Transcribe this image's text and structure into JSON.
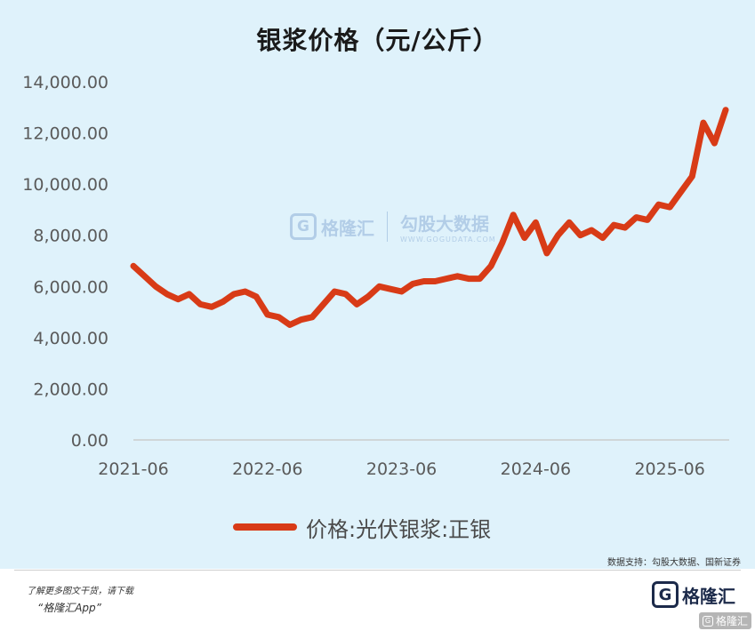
{
  "chart_data": {
    "type": "line",
    "title": "银浆价格（元/公斤）",
    "ylim": [
      0,
      14000
    ],
    "yticks": [
      "0.00",
      "2,000.00",
      "4,000.00",
      "6,000.00",
      "8,000.00",
      "10,000.00",
      "12,000.00",
      "14,000.00"
    ],
    "xticks": [
      "2021-06",
      "2022-06",
      "2023-06",
      "2024-06",
      "2025-06"
    ],
    "grid": false,
    "legend_position": "bottom",
    "series": [
      {
        "name": "价格:光伏银浆:正银",
        "color": "#d83b17",
        "x": [
          "2021-06",
          "2021-07",
          "2021-08",
          "2021-09",
          "2021-10",
          "2021-11",
          "2021-12",
          "2022-01",
          "2022-02",
          "2022-03",
          "2022-04",
          "2022-05",
          "2022-06",
          "2022-07",
          "2022-08",
          "2022-09",
          "2022-10",
          "2022-11",
          "2022-12",
          "2023-01",
          "2023-02",
          "2023-03",
          "2023-04",
          "2023-05",
          "2023-06",
          "2023-07",
          "2023-08",
          "2023-09",
          "2023-10",
          "2023-11",
          "2023-12",
          "2024-01",
          "2024-02",
          "2024-03",
          "2024-04",
          "2024-05",
          "2024-06",
          "2024-07",
          "2024-08",
          "2024-09",
          "2024-10",
          "2024-11",
          "2024-12",
          "2025-01",
          "2025-02",
          "2025-03",
          "2025-04",
          "2025-05",
          "2025-06",
          "2025-07",
          "2025-08",
          "2025-09",
          "2025-10",
          "2025-11"
        ],
        "values": [
          6800,
          6400,
          6000,
          5700,
          5500,
          5700,
          5300,
          5200,
          5400,
          5700,
          5800,
          5600,
          4900,
          4800,
          4500,
          4700,
          4800,
          5300,
          5800,
          5700,
          5300,
          5600,
          6000,
          5900,
          5800,
          6100,
          6200,
          6200,
          6300,
          6400,
          6300,
          6300,
          6800,
          7700,
          8800,
          7900,
          8500,
          7300,
          8000,
          8500,
          8000,
          8200,
          7900,
          8400,
          8300,
          8700,
          8600,
          9200,
          9100,
          9700,
          10300,
          12400,
          11600,
          12900
        ]
      }
    ]
  },
  "legend_label": "价格:光伏银浆:正银",
  "source_note": "数据支持：勾股大数据、国新证券",
  "promo_line1": "了解更多图文干货，请下载",
  "promo_line2": "“格隆汇App”",
  "watermark": {
    "logo_letter": "G",
    "brand_name": "格隆汇",
    "brand_name2": "勾股大数据",
    "url": "WWW.GOGUDATA.COM"
  },
  "footer_logo": {
    "letter": "G",
    "name": "格隆汇"
  },
  "corner_badge": {
    "letter": "G",
    "text": "格隆汇"
  }
}
